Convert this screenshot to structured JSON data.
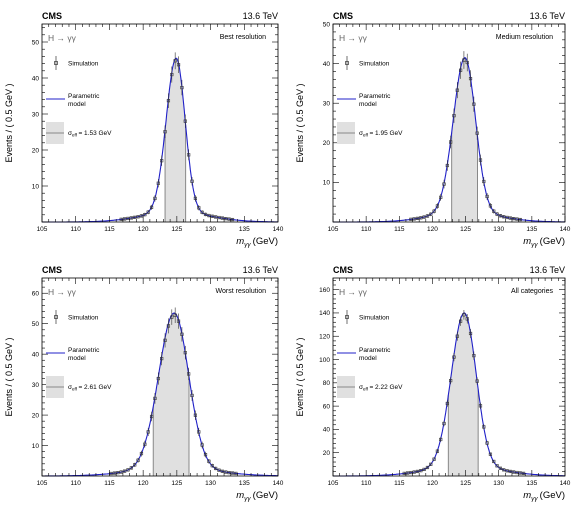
{
  "chart_data": [
    {
      "type": "line",
      "experiment": "CMS",
      "energy": "13.6 TeV",
      "process": "H → γγ",
      "category": "Best resolution",
      "xlabel": "m",
      "xlabel_sub": "γγ",
      "xunit": "(GeV)",
      "ylabel": "Events / ( 0.5 GeV )",
      "xlim": [
        105,
        140
      ],
      "ylim": [
        0,
        55
      ],
      "xticks": [
        105,
        110,
        115,
        120,
        125,
        130,
        135,
        140
      ],
      "yticks": [
        10,
        20,
        30,
        40,
        50
      ],
      "legend": {
        "simulation": "Simulation",
        "model_line1": "Parametric",
        "model_line2": "model",
        "sigma_eff": "σ",
        "sigma_sub": "eff",
        "sigma_value": "= 1.53 GeV"
      },
      "shade": [
        123.25,
        126.3
      ],
      "colors": {
        "model": "#2020c8",
        "points": "#333333",
        "shade": "#e0e0e0"
      },
      "peak": {
        "mean": 124.9,
        "amplitude": 45.5,
        "sigma_left": 1.48,
        "sigma_right": 1.32,
        "tail_weight": 0.06,
        "tail_width": 5.0
      }
    },
    {
      "type": "line",
      "experiment": "CMS",
      "energy": "13.6 TeV",
      "process": "H → γγ",
      "category": "Medium resolution",
      "xlabel": "m",
      "xlabel_sub": "γγ",
      "xunit": "(GeV)",
      "ylabel": "Events / ( 0.5 GeV )",
      "xlim": [
        105,
        140
      ],
      "ylim": [
        0,
        50
      ],
      "xticks": [
        105,
        110,
        115,
        120,
        125,
        130,
        135,
        140
      ],
      "yticks": [
        10,
        20,
        30,
        40,
        50
      ],
      "legend": {
        "simulation": "Simulation",
        "model_line1": "Parametric",
        "model_line2": "model",
        "sigma_eff": "σ",
        "sigma_sub": "eff",
        "sigma_value": "= 1.95 GeV"
      },
      "shade": [
        122.9,
        126.8
      ],
      "colors": {
        "model": "#2020c8",
        "points": "#333333",
        "shade": "#e0e0e0"
      },
      "peak": {
        "mean": 124.9,
        "amplitude": 41.5,
        "sigma_left": 1.75,
        "sigma_right": 1.6,
        "tail_weight": 0.06,
        "tail_width": 5.0
      }
    },
    {
      "type": "line",
      "experiment": "CMS",
      "energy": "13.6 TeV",
      "process": "H → γγ",
      "category": "Worst resolution",
      "xlabel": "m",
      "xlabel_sub": "γγ",
      "xunit": "(GeV)",
      "ylabel": "Events / ( 0.5 GeV )",
      "xlim": [
        105,
        140
      ],
      "ylim": [
        0,
        65
      ],
      "xticks": [
        105,
        110,
        115,
        120,
        125,
        130,
        135,
        140
      ],
      "yticks": [
        10,
        20,
        30,
        40,
        50,
        60
      ],
      "legend": {
        "simulation": "Simulation",
        "model_line1": "Parametric",
        "model_line2": "model",
        "sigma_eff": "σ",
        "sigma_sub": "eff",
        "sigma_value": "= 2.61 GeV"
      },
      "shade": [
        121.5,
        126.8
      ],
      "colors": {
        "model": "#2020c8",
        "points": "#333333",
        "shade": "#e0e0e0"
      },
      "peak": {
        "mean": 124.6,
        "amplitude": 53.5,
        "sigma_left": 2.3,
        "sigma_right": 2.15,
        "tail_weight": 0.05,
        "tail_width": 6.0
      }
    },
    {
      "type": "line",
      "experiment": "CMS",
      "energy": "13.6 TeV",
      "process": "H → γγ",
      "category": "All categories",
      "xlabel": "m",
      "xlabel_sub": "γγ",
      "xunit": "(GeV)",
      "ylabel": "Events / ( 0.5 GeV )",
      "xlim": [
        105,
        140
      ],
      "ylim": [
        0,
        170
      ],
      "xticks": [
        105,
        110,
        115,
        120,
        125,
        130,
        135,
        140
      ],
      "yticks": [
        20,
        40,
        60,
        80,
        100,
        120,
        140,
        160
      ],
      "legend": {
        "simulation": "Simulation",
        "model_line1": "Parametric",
        "model_line2": "model",
        "sigma_eff": "σ",
        "sigma_sub": "eff",
        "sigma_value": "= 2.22 GeV"
      },
      "shade": [
        122.4,
        126.9
      ],
      "colors": {
        "model": "#2020c8",
        "points": "#333333",
        "shade": "#e0e0e0"
      },
      "peak": {
        "mean": 124.8,
        "amplitude": 140,
        "sigma_left": 1.95,
        "sigma_right": 1.8,
        "tail_weight": 0.06,
        "tail_width": 5.5
      }
    }
  ]
}
